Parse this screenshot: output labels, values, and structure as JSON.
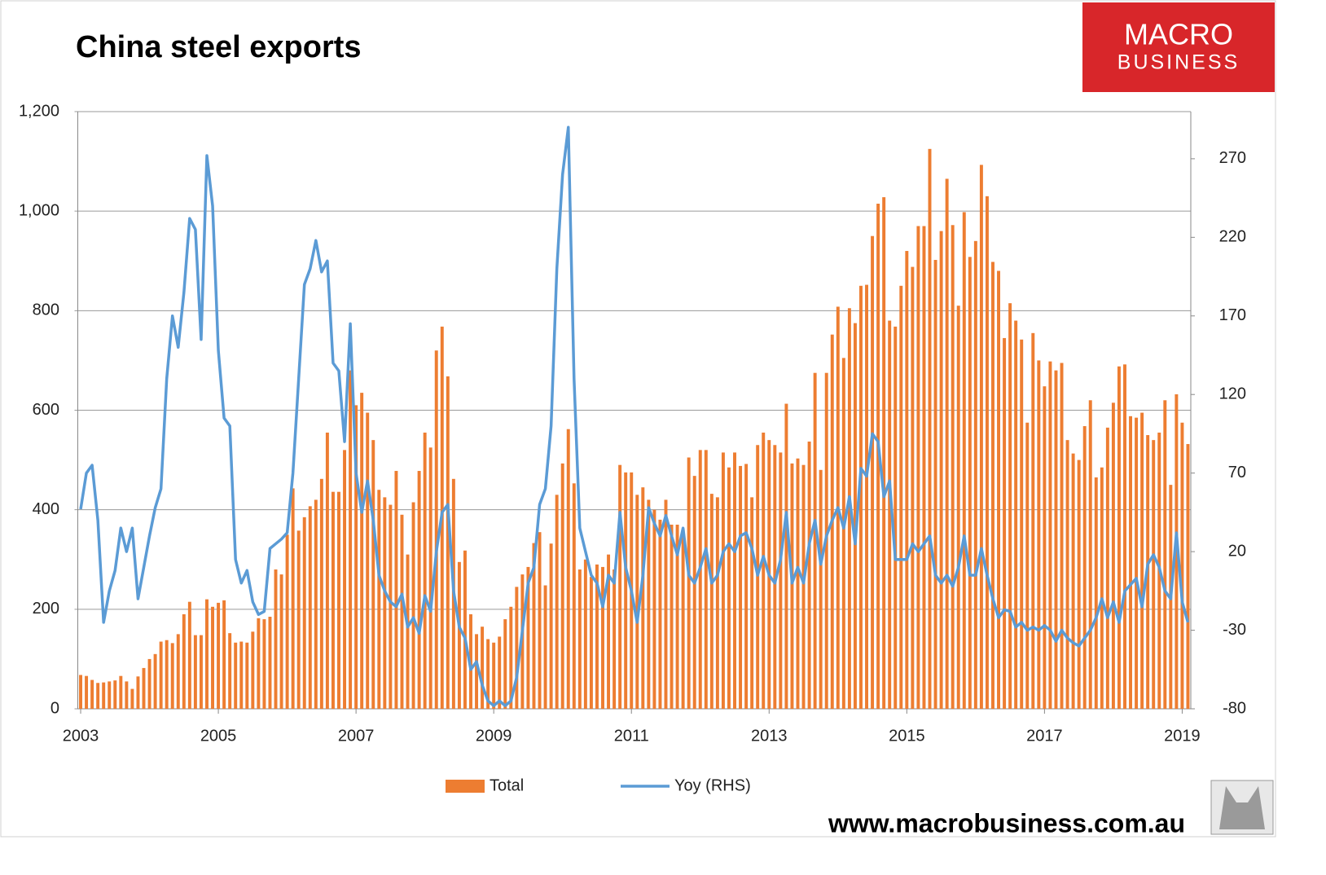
{
  "chart_data": {
    "type": "bar",
    "title": "China steel exports",
    "logo": {
      "line1": "MACRO",
      "line2": "BUSINESS"
    },
    "footer": "www.macrobusiness.com.au",
    "categories": [
      "2003",
      null,
      null,
      null,
      null,
      null,
      null,
      null,
      null,
      null,
      null,
      null,
      null,
      null,
      null,
      null,
      null,
      null,
      null,
      null,
      null,
      null,
      null,
      null,
      "2005",
      null,
      null,
      null,
      null,
      null,
      null,
      null,
      null,
      null,
      null,
      null,
      null,
      null,
      null,
      null,
      null,
      null,
      null,
      null,
      null,
      null,
      null,
      null,
      "2007",
      null,
      null,
      null,
      null,
      null,
      null,
      null,
      null,
      null,
      null,
      null,
      null,
      null,
      null,
      null,
      null,
      null,
      null,
      null,
      null,
      null,
      null,
      null,
      "2009",
      null,
      null,
      null,
      null,
      null,
      null,
      null,
      null,
      null,
      null,
      null,
      null,
      null,
      null,
      null,
      null,
      null,
      null,
      null,
      null,
      null,
      null,
      null,
      "2011",
      null,
      null,
      null,
      null,
      null,
      null,
      null,
      null,
      null,
      null,
      null,
      null,
      null,
      null,
      null,
      null,
      null,
      null,
      null,
      null,
      null,
      null,
      null,
      "2013",
      null,
      null,
      null,
      null,
      null,
      null,
      null,
      null,
      null,
      null,
      null,
      null,
      null,
      null,
      null,
      null,
      null,
      null,
      null,
      null,
      null,
      null,
      null,
      "2015",
      null,
      null,
      null,
      null,
      null,
      null,
      null,
      null,
      null,
      null,
      null,
      null,
      null,
      null,
      null,
      null,
      null,
      null,
      null,
      null,
      null,
      null,
      null,
      "2017",
      null,
      null,
      null,
      null,
      null,
      null,
      null,
      null,
      null,
      null,
      null,
      null,
      null,
      null,
      null,
      null,
      null,
      null,
      null,
      null,
      null,
      null,
      null,
      "2019",
      null
    ],
    "series": [
      {
        "name": "Total",
        "type": "bar",
        "color": "#ed7d31",
        "values": [
          68,
          66,
          58,
          52,
          53,
          55,
          57,
          66,
          55,
          40,
          65,
          82,
          100,
          110,
          135,
          138,
          132,
          150,
          190,
          215,
          148,
          148,
          220,
          205,
          213,
          218,
          152,
          133,
          135,
          133,
          155,
          182,
          180,
          185,
          280,
          270,
          350,
          443,
          358,
          385,
          407,
          420,
          462,
          555,
          436,
          436,
          520,
          680,
          610,
          635,
          595,
          540,
          440,
          425,
          410,
          478,
          390,
          310,
          415,
          478,
          555,
          525,
          720,
          768,
          668,
          462,
          295,
          318,
          190,
          150,
          165,
          140,
          133,
          145,
          180,
          205,
          245,
          270,
          285,
          333,
          355,
          248,
          332,
          430,
          493,
          562,
          453,
          280,
          300,
          265,
          290,
          285,
          310,
          280,
          490,
          475,
          475,
          430,
          445,
          420,
          400,
          380,
          420,
          370,
          370,
          360,
          505,
          468,
          520,
          520,
          432,
          425,
          515,
          485,
          515,
          488,
          492,
          425,
          530,
          555,
          540,
          530,
          515,
          613,
          493,
          503,
          490,
          537,
          675,
          480,
          675,
          752,
          808,
          705,
          805,
          775,
          850,
          852,
          950,
          1015,
          1028,
          780,
          768,
          850,
          920,
          888,
          970,
          970,
          1125,
          902,
          960,
          1065,
          972,
          810,
          998,
          908,
          940,
          1093,
          1030,
          898,
          880,
          745,
          815,
          780,
          742,
          575,
          755,
          700,
          648,
          698,
          680,
          695,
          540,
          513,
          500,
          568,
          620,
          465,
          485,
          565,
          615,
          688,
          692,
          588,
          585,
          595,
          550,
          540,
          555,
          620,
          450,
          632,
          575,
          532
        ]
      },
      {
        "name": "Yoy (RHS)",
        "type": "line",
        "axis": "y2",
        "color": "#5b9bd5",
        "values": [
          47,
          70,
          75,
          40,
          -25,
          -5,
          8,
          35,
          20,
          35,
          -10,
          10,
          30,
          48,
          60,
          130,
          170,
          150,
          185,
          232,
          225,
          155,
          272,
          240,
          148,
          105,
          100,
          15,
          0,
          8,
          -12,
          -20,
          -18,
          22,
          25,
          28,
          32,
          70,
          130,
          190,
          200,
          218,
          198,
          205,
          140,
          135,
          90,
          165,
          70,
          45,
          65,
          40,
          5,
          -5,
          -12,
          -15,
          -7,
          -28,
          -22,
          -32,
          -8,
          -18,
          20,
          45,
          50,
          -5,
          -28,
          -35,
          -55,
          -50,
          -65,
          -75,
          -78,
          -75,
          -78,
          -75,
          -60,
          -30,
          0,
          10,
          50,
          60,
          100,
          200,
          260,
          290,
          130,
          35,
          20,
          5,
          0,
          -15,
          5,
          0,
          45,
          10,
          -5,
          -25,
          5,
          48,
          38,
          30,
          43,
          30,
          18,
          35,
          5,
          0,
          10,
          22,
          0,
          5,
          20,
          25,
          20,
          30,
          32,
          22,
          5,
          17,
          5,
          0,
          15,
          45,
          0,
          10,
          0,
          25,
          40,
          12,
          30,
          40,
          48,
          35,
          55,
          25,
          73,
          68,
          95,
          90,
          55,
          65,
          15,
          15,
          15,
          25,
          20,
          25,
          30,
          5,
          0,
          5,
          -2,
          10,
          30,
          5,
          5,
          22,
          5,
          -10,
          -22,
          -17,
          -18,
          -28,
          -25,
          -30,
          -28,
          -30,
          -27,
          -30,
          -37,
          -30,
          -35,
          -38,
          -40,
          -35,
          -30,
          -22,
          -10,
          -22,
          -12,
          -25,
          -5,
          -1,
          3,
          -15,
          12,
          18,
          10,
          -5,
          -10,
          32,
          -12,
          -25
        ]
      }
    ],
    "ylim": [
      0,
      1200
    ],
    "yticks": [
      0,
      200,
      400,
      600,
      800,
      {
        "value": 1000,
        "label": "1,000"
      },
      {
        "value": 1200,
        "label": "1,200"
      }
    ],
    "y2lim": [
      -80,
      300
    ],
    "y2ticks": [
      -80,
      -30,
      20,
      70,
      120,
      170,
      220,
      270
    ],
    "grid": true
  }
}
